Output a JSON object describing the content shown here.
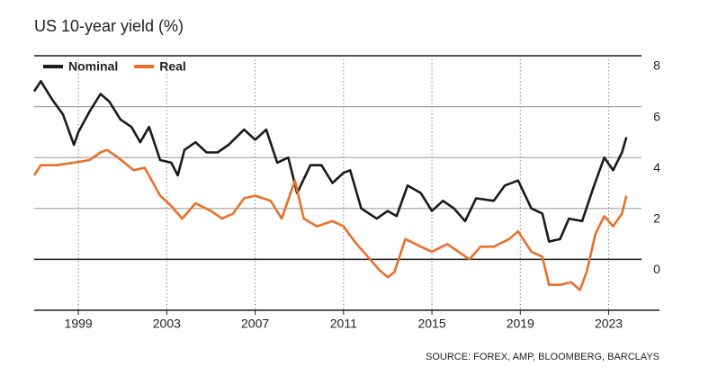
{
  "chart_data": {
    "type": "line",
    "title": "US 10-year yield (%)",
    "source": "SOURCE: FOREX, AMP, BLOOMBERG, BARCLAYS",
    "xlim": [
      1997,
      2025.3
    ],
    "xticks": [
      1999,
      2003,
      2007,
      2011,
      2015,
      2019,
      2023
    ],
    "ylim": [
      -2,
      8
    ],
    "yticks": [
      0,
      2,
      4,
      6,
      8
    ],
    "grid": true,
    "legend": "top-left",
    "series": [
      {
        "name": "Nominal",
        "color": "#1a1a1a",
        "x": [
          1997.0,
          1997.3,
          1997.8,
          1998.3,
          1998.8,
          1999.0,
          1999.5,
          2000.0,
          2000.4,
          2000.9,
          2001.4,
          2001.8,
          2002.2,
          2002.7,
          2003.2,
          2003.5,
          2003.8,
          2004.3,
          2004.8,
          2005.3,
          2005.8,
          2006.5,
          2007.0,
          2007.5,
          2008.0,
          2008.5,
          2008.9,
          2009.5,
          2010.0,
          2010.5,
          2011.0,
          2011.3,
          2011.8,
          2012.5,
          2013.0,
          2013.4,
          2013.9,
          2014.5,
          2015.0,
          2015.5,
          2016.0,
          2016.5,
          2017.0,
          2017.8,
          2018.3,
          2018.9,
          2019.5,
          2020.0,
          2020.3,
          2020.8,
          2021.2,
          2021.8,
          2022.3,
          2022.8,
          2023.2,
          2023.6,
          2023.8
        ],
        "values": [
          6.6,
          7.0,
          6.3,
          5.7,
          4.5,
          5.0,
          5.8,
          6.5,
          6.2,
          5.5,
          5.2,
          4.6,
          5.2,
          3.9,
          3.8,
          3.3,
          4.3,
          4.6,
          4.2,
          4.2,
          4.5,
          5.1,
          4.7,
          5.1,
          3.8,
          4.0,
          2.6,
          3.7,
          3.7,
          3.0,
          3.4,
          3.5,
          2.0,
          1.6,
          1.9,
          1.7,
          2.9,
          2.6,
          1.9,
          2.3,
          2.0,
          1.5,
          2.4,
          2.3,
          2.9,
          3.1,
          2.0,
          1.8,
          0.7,
          0.8,
          1.6,
          1.5,
          2.8,
          4.0,
          3.5,
          4.2,
          4.8
        ]
      },
      {
        "name": "Real",
        "color": "#e8702a",
        "x": [
          1997.0,
          1997.3,
          1998.0,
          1998.8,
          1999.5,
          2000.0,
          2000.3,
          2000.8,
          2001.5,
          2002.0,
          2002.7,
          2003.2,
          2003.7,
          2004.3,
          2005.0,
          2005.5,
          2006.0,
          2006.5,
          2007.0,
          2007.7,
          2008.2,
          2008.8,
          2009.2,
          2009.8,
          2010.5,
          2011.0,
          2011.5,
          2012.0,
          2012.6,
          2013.0,
          2013.3,
          2013.8,
          2014.5,
          2015.0,
          2015.7,
          2016.2,
          2016.7,
          2017.2,
          2017.8,
          2018.5,
          2018.9,
          2019.5,
          2020.0,
          2020.3,
          2020.8,
          2021.3,
          2021.7,
          2022.0,
          2022.4,
          2022.8,
          2023.2,
          2023.6,
          2023.8
        ],
        "values": [
          3.3,
          3.7,
          3.7,
          3.8,
          3.9,
          4.2,
          4.3,
          4.0,
          3.5,
          3.6,
          2.5,
          2.1,
          1.6,
          2.2,
          1.9,
          1.6,
          1.8,
          2.4,
          2.5,
          2.3,
          1.6,
          3.1,
          1.6,
          1.3,
          1.5,
          1.3,
          0.7,
          0.2,
          -0.4,
          -0.7,
          -0.5,
          0.8,
          0.5,
          0.3,
          0.6,
          0.3,
          0.0,
          0.5,
          0.5,
          0.8,
          1.1,
          0.3,
          0.1,
          -1.0,
          -1.0,
          -0.9,
          -1.2,
          -0.5,
          1.0,
          1.7,
          1.3,
          1.8,
          2.5
        ]
      }
    ]
  }
}
